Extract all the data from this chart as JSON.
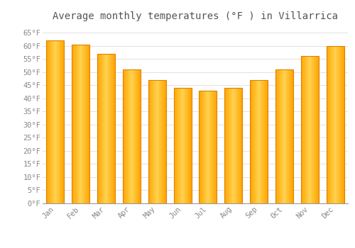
{
  "title": "Average monthly temperatures (°F ) in Villarrica",
  "months": [
    "Jan",
    "Feb",
    "Mar",
    "Apr",
    "May",
    "Jun",
    "Jul",
    "Aug",
    "Sep",
    "Oct",
    "Nov",
    "Dec"
  ],
  "values": [
    62,
    60.5,
    57,
    51,
    47,
    44,
    43,
    44,
    47,
    51,
    56,
    60
  ],
  "bar_color_left": "#FFA500",
  "bar_color_right": "#FFD060",
  "bar_edge_color": "#E08000",
  "background_color": "#FFFFFF",
  "grid_color": "#DDDDDD",
  "ytick_labels": [
    "0°F",
    "5°F",
    "10°F",
    "15°F",
    "20°F",
    "25°F",
    "30°F",
    "35°F",
    "40°F",
    "45°F",
    "50°F",
    "55°F",
    "60°F",
    "65°F"
  ],
  "ytick_values": [
    0,
    5,
    10,
    15,
    20,
    25,
    30,
    35,
    40,
    45,
    50,
    55,
    60,
    65
  ],
  "ylim": [
    0,
    68
  ],
  "title_fontsize": 10,
  "tick_fontsize": 7.5,
  "title_color": "#555555",
  "tick_color": "#888888",
  "font_family": "monospace",
  "bar_width": 0.7
}
